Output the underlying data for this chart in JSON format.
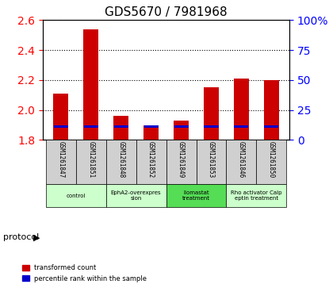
{
  "title": "GDS5670 / 7981968",
  "samples": [
    "GSM1261847",
    "GSM1261851",
    "GSM1261848",
    "GSM1261852",
    "GSM1261849",
    "GSM1261853",
    "GSM1261846",
    "GSM1261850"
  ],
  "transformed_counts": [
    2.11,
    2.54,
    1.96,
    1.9,
    1.93,
    2.15,
    2.21,
    2.2
  ],
  "percentile_ranks": [
    12,
    18,
    13,
    15,
    14,
    13,
    14,
    14
  ],
  "ylim_left": [
    1.8,
    2.6
  ],
  "yticks_left": [
    1.8,
    2.0,
    2.2,
    2.4,
    2.6
  ],
  "ylim_right": [
    0,
    100
  ],
  "yticks_right": [
    0,
    25,
    50,
    75,
    100
  ],
  "ytick_labels_right": [
    "0",
    "25",
    "50",
    "75",
    "100%"
  ],
  "bar_color_red": "#cc0000",
  "bar_color_blue": "#0000cc",
  "bar_width": 0.5,
  "protocols": [
    {
      "label": "control",
      "samples": [
        0,
        1
      ],
      "color": "#ccffcc"
    },
    {
      "label": "EphA2-overexpres\nsion",
      "samples": [
        2,
        3
      ],
      "color": "#ccffcc"
    },
    {
      "label": "Ilomastat\ntreatment",
      "samples": [
        4,
        5
      ],
      "color": "#66ee66"
    },
    {
      "label": "Rho activator Calp\neptin treatment",
      "samples": [
        6,
        7
      ],
      "color": "#ccffcc"
    }
  ],
  "protocol_label": "protocol",
  "legend_red": "transformed count",
  "legend_blue": "percentile rank within the sample",
  "base_value": 1.8,
  "percentile_scale": 0.008
}
